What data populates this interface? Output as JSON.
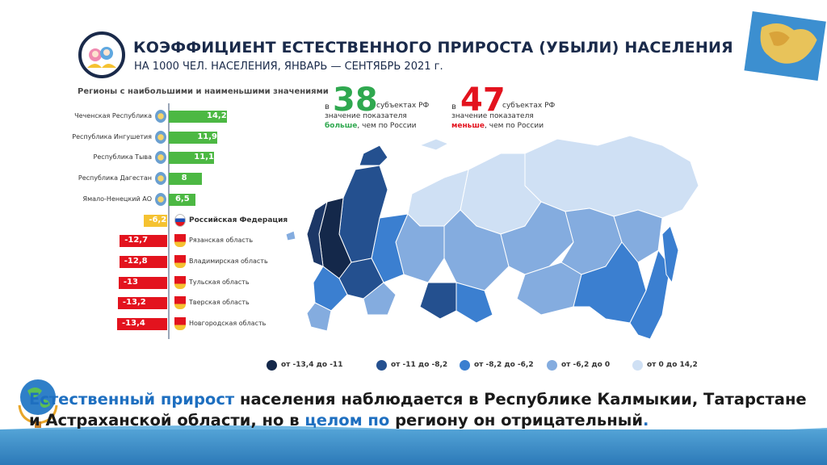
{
  "header": {
    "title": "КОЭФФИЦИЕНТ ЕСТЕСТВЕННОГО ПРИРОСТА (УБЫЛИ) НАСЕЛЕНИЯ",
    "subtitle": "НА 1000 ЧЕЛ. НАСЕЛЕНИЯ, ЯНВАРЬ — СЕНТЯБРЬ 2021 г."
  },
  "ranking": {
    "title": "Регионы с наибольшими и наименьшими значениями"
  },
  "chart_data": {
    "type": "bar",
    "categories": [
      "Чеченская Республика",
      "Республика Ингушетия",
      "Республика Тыва",
      "Республика Дагестан",
      "Ямало-Ненецкий АО",
      "Российская Федерация",
      "Рязанская область",
      "Владимирская область",
      "Тульская область",
      "Тверская область",
      "Новгородская область"
    ],
    "values": [
      14.2,
      11.9,
      11.1,
      8,
      6.5,
      -6.2,
      -12.7,
      -12.8,
      -13,
      -13.2,
      -13.4
    ],
    "value_labels": [
      "14,2",
      "11,9",
      "11,1",
      "8",
      "6,5",
      "-6,2",
      "-12,7",
      "-12,8",
      "-13",
      "-13,2",
      "-13,4"
    ],
    "colors": {
      "positive": "#4cb843",
      "negative": "#e3131e",
      "federation": "#f5c231"
    }
  },
  "counts": {
    "more": {
      "prefix": "в",
      "number": "38",
      "line1": "субъектах РФ",
      "line2": "значение показателя",
      "emphasis": "больше",
      "rest": ", чем по России",
      "color": "#2fa84f"
    },
    "less": {
      "prefix": "в",
      "number": "47",
      "line1": "субъектах РФ",
      "line2": "значение показателя",
      "emphasis": "меньше",
      "rest": ", чем по России",
      "color": "#e3131e"
    }
  },
  "legend": [
    {
      "label": "от -13,4 до -11",
      "color": "#14284a"
    },
    {
      "label": "от -11 до -8,2",
      "color": "#24508f"
    },
    {
      "label": "от -8,2 до -6,2",
      "color": "#3b7fd0"
    },
    {
      "label": "от -6,2 до 0",
      "color": "#84acdf"
    },
    {
      "label": "от 0 до 14,2",
      "color": "#cfe0f4"
    }
  ],
  "caption": {
    "part1": "Естественный прирост",
    "part2": " населения наблюдается в Республике Калмыкии, Татарстане и Астраханской области, но в ",
    "part3": "целом по",
    "part4": " региону он отрицательный",
    "part5": "."
  }
}
